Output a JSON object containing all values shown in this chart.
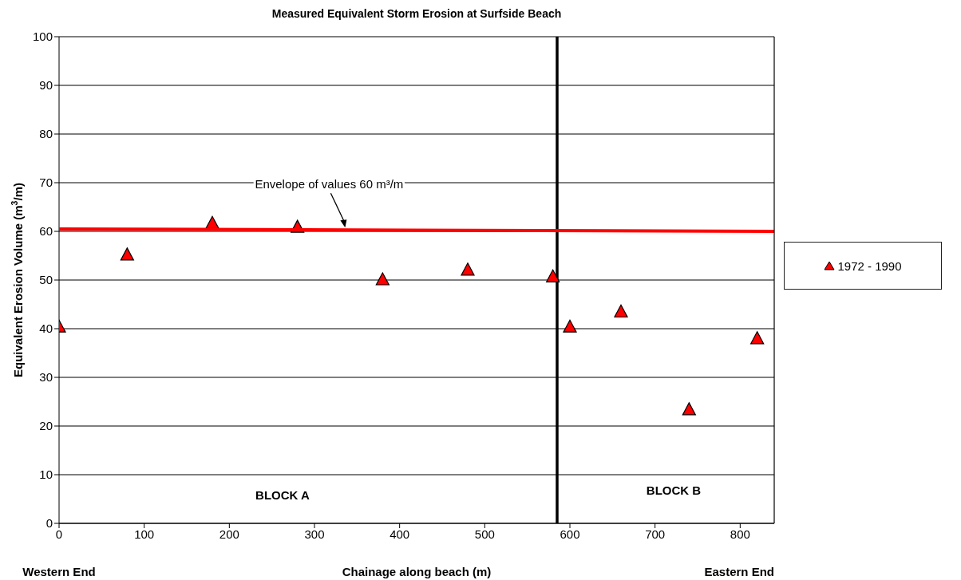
{
  "chart_data": {
    "type": "scatter",
    "title": "Measured Equivalent Storm Erosion at Surfside Beach",
    "xlabel": "Chainage along beach (m)",
    "ylabel": "Equivalent Erosion Volume (m$^{3}$/m)",
    "series": [
      {
        "name": "1972 - 1990",
        "type": "scatter",
        "color": "#ff0000",
        "marker": "triangle",
        "x": [
          0,
          80,
          180,
          280,
          380,
          480,
          580,
          600,
          660,
          740,
          820
        ],
        "values": [
          40.3,
          55.1,
          61.6,
          60.8,
          50,
          52,
          50.6,
          40.3,
          43.4,
          23.3,
          37.9
        ]
      },
      {
        "type": "line",
        "color": "#ff0000",
        "marker": "none",
        "x": [
          0,
          840
        ],
        "values": [
          60.5,
          60
        ]
      }
    ],
    "xlim": [
      0,
      840
    ],
    "xticks": [
      0,
      100,
      200,
      300,
      400,
      500,
      600,
      700,
      800
    ],
    "ylim": [
      0,
      100
    ],
    "yticks": [
      0,
      10,
      20,
      30,
      40,
      50,
      60,
      70,
      80,
      90,
      100
    ],
    "grid": "y",
    "legend": "right",
    "ref_lines": [
      {
        "axis": "x",
        "value": 585,
        "color": "#000000"
      }
    ],
    "annotations": [
      {
        "text": "Envelope of values 60 m³/m",
        "x": 336,
        "y": 60.3
      },
      "BLOCK A",
      "BLOCK B",
      "Western End",
      "Eastern End"
    ]
  }
}
